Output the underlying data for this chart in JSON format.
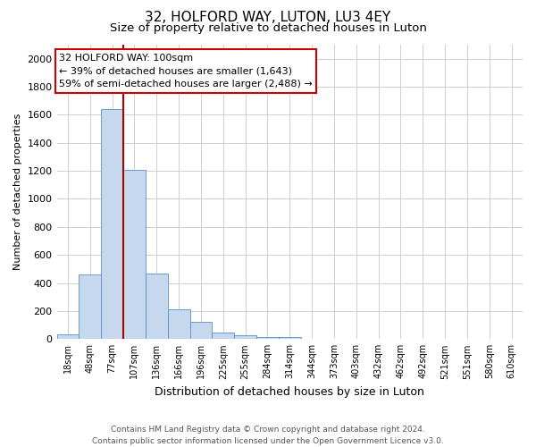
{
  "title": "32, HOLFORD WAY, LUTON, LU3 4EY",
  "subtitle": "Size of property relative to detached houses in Luton",
  "xlabel": "Distribution of detached houses by size in Luton",
  "ylabel": "Number of detached properties",
  "footer_line1": "Contains HM Land Registry data © Crown copyright and database right 2024.",
  "footer_line2": "Contains public sector information licensed under the Open Government Licence v3.0.",
  "categories": [
    "18sqm",
    "48sqm",
    "77sqm",
    "107sqm",
    "136sqm",
    "166sqm",
    "196sqm",
    "225sqm",
    "255sqm",
    "284sqm",
    "314sqm",
    "344sqm",
    "373sqm",
    "403sqm",
    "432sqm",
    "462sqm",
    "492sqm",
    "521sqm",
    "551sqm",
    "580sqm",
    "610sqm"
  ],
  "values": [
    35,
    460,
    1640,
    1210,
    470,
    210,
    125,
    45,
    25,
    15,
    15,
    0,
    0,
    0,
    0,
    0,
    0,
    0,
    0,
    0,
    0
  ],
  "bar_color": "#c5d8ed",
  "bar_edge_color": "#5b8ec4",
  "highlight_line_color": "#aa0000",
  "annotation_box_text": "32 HOLFORD WAY: 100sqm\n← 39% of detached houses are smaller (1,643)\n59% of semi-detached houses are larger (2,488) →",
  "ylim": [
    0,
    2100
  ],
  "yticks": [
    0,
    200,
    400,
    600,
    800,
    1000,
    1200,
    1400,
    1600,
    1800,
    2000
  ],
  "background_color": "#ffffff",
  "grid_color": "#d0d0d0",
  "title_fontsize": 11,
  "subtitle_fontsize": 9.5
}
